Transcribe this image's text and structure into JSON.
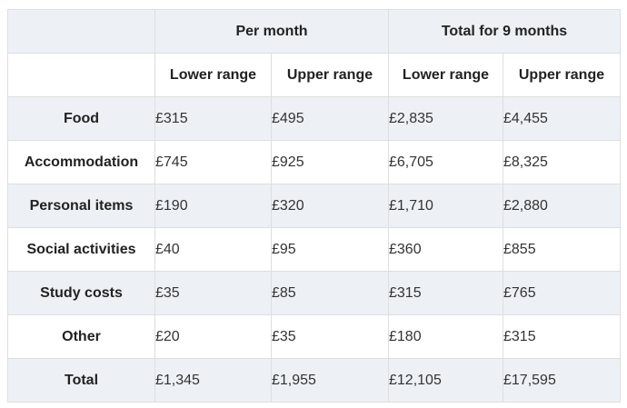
{
  "table": {
    "group_headers": [
      {
        "label": "Per month"
      },
      {
        "label": "Total for 9 months"
      }
    ],
    "sub_headers": [
      {
        "label": "Lower range"
      },
      {
        "label": "Upper range"
      },
      {
        "label": "Lower range"
      },
      {
        "label": "Upper range"
      }
    ],
    "rows": [
      {
        "label": "Food",
        "values": [
          "£315",
          "£495",
          "£2,835",
          "£4,455"
        ]
      },
      {
        "label": "Accommodation",
        "values": [
          "£745",
          "£925",
          "£6,705",
          "£8,325"
        ]
      },
      {
        "label": "Personal items",
        "values": [
          "£190",
          "£320",
          "£1,710",
          "£2,880"
        ]
      },
      {
        "label": "Social activities",
        "values": [
          "£40",
          "£95",
          "£360",
          "£855"
        ]
      },
      {
        "label": "Study costs",
        "values": [
          "£35",
          "£85",
          "£315",
          "£765"
        ]
      },
      {
        "label": "Other",
        "values": [
          "£20",
          "£35",
          "£180",
          "£315"
        ]
      },
      {
        "label": "Total",
        "values": [
          "£1,345",
          "£1,955",
          "£12,105",
          "£17,595"
        ]
      }
    ],
    "colors": {
      "stripe": "#edf1f5",
      "border": "#dedede",
      "header_text": "#222222",
      "value_text": "#333333"
    }
  }
}
